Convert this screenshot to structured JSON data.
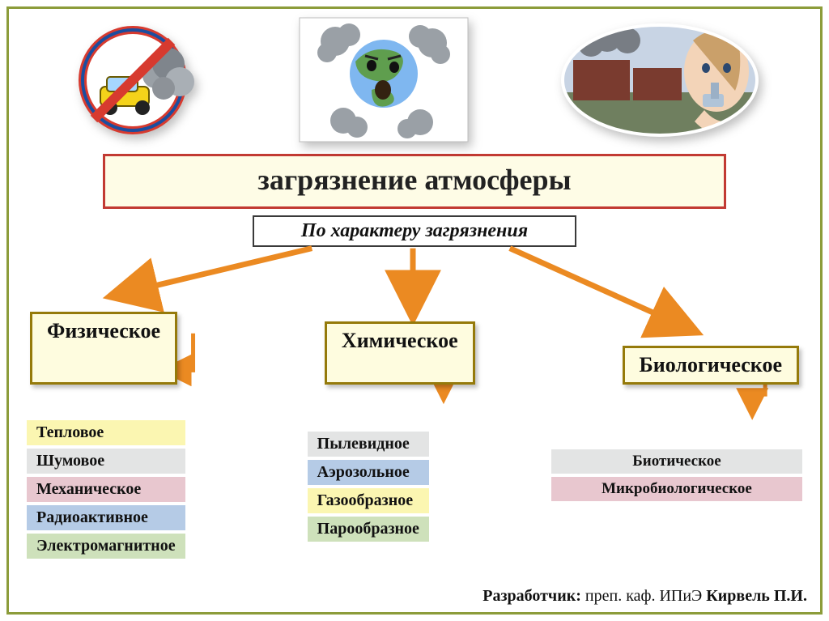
{
  "title": "загрязнение атмосферы",
  "subtitle": "По характеру загрязнения",
  "categories": {
    "physical": "Физическое",
    "chemical": "Химическое",
    "biological": "Биологическое"
  },
  "physical_items": [
    {
      "label": "Тепловое",
      "bg": "#fbf6b1"
    },
    {
      "label": "Шумовое",
      "bg": "#e3e4e4"
    },
    {
      "label": "Механическое",
      "bg": "#e8c7cf"
    },
    {
      "label": "Радиоактивное",
      "bg": "#b5cbe6"
    },
    {
      "label": "Электромагнитное",
      "bg": "#cee1bb"
    }
  ],
  "chemical_items": [
    {
      "label": "Пылевидное",
      "bg": "#e3e4e4"
    },
    {
      "label": "Аэрозольное",
      "bg": "#b5cbe6"
    },
    {
      "label": "Газообразное",
      "bg": "#fbf6b1"
    },
    {
      "label": "Парообразное",
      "bg": "#cee1bb"
    }
  ],
  "biological_items": [
    {
      "label": "Биотическое",
      "bg": "#e3e4e4"
    },
    {
      "label": "Микробиологическое",
      "bg": "#e8c7cf"
    }
  ],
  "palette": {
    "slide_border": "#8c9c3a",
    "title_border": "#c23a33",
    "title_bg": "#fefce6",
    "cat_border": "#957a0a",
    "cat_bg": "#fefcdf",
    "arrow": "#eb8a22"
  },
  "footer": {
    "label": "Разработчик:",
    "pre": " преп. каф. ИПиЭ  ",
    "name": "Кирвель П.И."
  }
}
